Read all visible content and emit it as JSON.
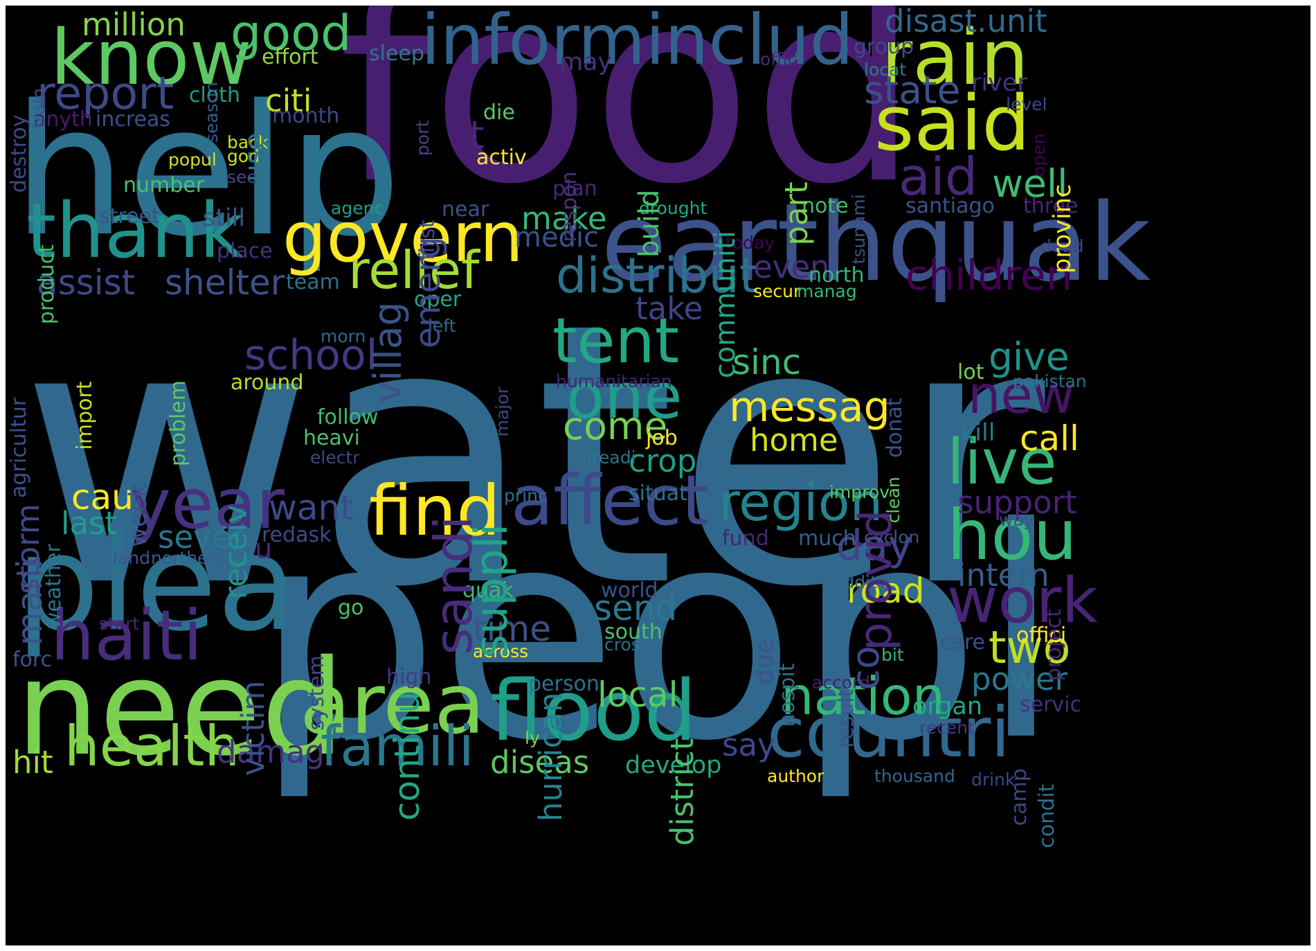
{
  "wordcloud": {
    "background": "#000000",
    "colormap": "viridis",
    "words": [
      {
        "text": "water",
        "color": "#31688e"
      },
      {
        "text": "peopl",
        "color": "#31688e"
      },
      {
        "text": "food",
        "color": "#481f70"
      },
      {
        "text": "help",
        "color": "#2c728e"
      },
      {
        "text": "need",
        "color": "#7ad151"
      },
      {
        "text": "plea",
        "color": "#2c728e"
      },
      {
        "text": "earthquak",
        "color": "#3b528b"
      },
      {
        "text": "informinclud",
        "color": "#33638d"
      },
      {
        "text": "know",
        "color": "#5ec962"
      },
      {
        "text": "rain",
        "color": "#b5de2b"
      },
      {
        "text": "said",
        "color": "#c8e020"
      },
      {
        "text": "thank",
        "color": "#21918c"
      },
      {
        "text": "govern",
        "color": "#fde725"
      },
      {
        "text": "countri",
        "color": "#31688e"
      },
      {
        "text": "flood",
        "color": "#1f9e89"
      },
      {
        "text": "area",
        "color": "#7ad151"
      },
      {
        "text": "haiti",
        "color": "#472d7b"
      },
      {
        "text": "year",
        "color": "#46327e"
      },
      {
        "text": "affect",
        "color": "#3e4989"
      },
      {
        "text": "hou",
        "color": "#35b779"
      },
      {
        "text": "find",
        "color": "#fde725"
      },
      {
        "text": "tent",
        "color": "#22a884"
      },
      {
        "text": "one",
        "color": "#1f9e89"
      },
      {
        "text": "live",
        "color": "#35b779"
      },
      {
        "text": "work",
        "color": "#482475"
      },
      {
        "text": "region",
        "color": "#26828e"
      },
      {
        "text": "famili",
        "color": "#2a788e"
      },
      {
        "text": "health",
        "color": "#86d549"
      },
      {
        "text": "nation",
        "color": "#35b779"
      },
      {
        "text": "report",
        "color": "#3e4989"
      },
      {
        "text": "relief",
        "color": "#a5db36"
      },
      {
        "text": "distribut",
        "color": "#2c728e"
      },
      {
        "text": "good",
        "color": "#4ac16d"
      },
      {
        "text": "aid",
        "color": "#482878"
      },
      {
        "text": "well",
        "color": "#3fbc73"
      },
      {
        "text": "children",
        "color": "#440154"
      },
      {
        "text": "new",
        "color": "#471365"
      },
      {
        "text": "messag",
        "color": "#fde725"
      },
      {
        "text": "two",
        "color": "#bddf26"
      },
      {
        "text": "school",
        "color": "#443983"
      },
      {
        "text": "assist",
        "color": "#3e4989"
      },
      {
        "text": "shelter",
        "color": "#3b528b"
      },
      {
        "text": "state",
        "color": "#3b528b"
      },
      {
        "text": "day",
        "color": "#414487"
      },
      {
        "text": "intern",
        "color": "#355f8d"
      },
      {
        "text": "support",
        "color": "#482475"
      },
      {
        "text": "road",
        "color": "#d2e21b"
      },
      {
        "text": "come",
        "color": "#7ad151"
      },
      {
        "text": "home",
        "color": "#d2e21b"
      },
      {
        "text": "call",
        "color": "#fde725"
      },
      {
        "text": "give",
        "color": "#21918c"
      },
      {
        "text": "power",
        "color": "#2a788e"
      },
      {
        "text": "local",
        "color": "#5ec962"
      },
      {
        "text": "crop",
        "color": "#1f9e89"
      },
      {
        "text": "sinc",
        "color": "#3fbc73"
      },
      {
        "text": "want",
        "color": "#3e4989"
      },
      {
        "text": "take",
        "color": "#414487"
      },
      {
        "text": "make",
        "color": "#35b779"
      },
      {
        "text": "citi",
        "color": "#c8e020"
      },
      {
        "text": "million",
        "color": "#86d549"
      },
      {
        "text": "send",
        "color": "#2a788e"
      },
      {
        "text": "last",
        "color": "#1f9e89"
      },
      {
        "text": "sever",
        "color": "#2a788e"
      },
      {
        "text": "time",
        "color": "#3b528b"
      },
      {
        "text": "cau",
        "color": "#fde725"
      },
      {
        "text": "hit",
        "color": "#a5db36"
      },
      {
        "text": "damag",
        "color": "#46327e"
      },
      {
        "text": "diseas",
        "color": "#5ec962"
      },
      {
        "text": "say",
        "color": "#3e4989"
      },
      {
        "text": "medic",
        "color": "#3b528b"
      },
      {
        "text": "even",
        "color": "#472d7b"
      },
      {
        "text": "oper",
        "color": "#22a884"
      },
      {
        "text": "north",
        "color": "#35b779"
      },
      {
        "text": "note",
        "color": "#3fbc73"
      },
      {
        "text": "team",
        "color": "#2c728e"
      },
      {
        "text": "still",
        "color": "#3b528b"
      },
      {
        "text": "place",
        "color": "#46327e"
      },
      {
        "text": "street",
        "color": "#3b528b"
      },
      {
        "text": "number",
        "color": "#4ac16d"
      },
      {
        "text": "month",
        "color": "#3e4989"
      },
      {
        "text": "increas",
        "color": "#3b528b"
      },
      {
        "text": "anyth",
        "color": "#481a6c"
      },
      {
        "text": "cloth",
        "color": "#1f9e89"
      },
      {
        "text": "effort",
        "color": "#95d840"
      },
      {
        "text": "sleep",
        "color": "#2a788e"
      },
      {
        "text": "may",
        "color": "#46327e"
      },
      {
        "text": "offic",
        "color": "#482878"
      },
      {
        "text": "group",
        "color": "#3e4989"
      },
      {
        "text": "locat",
        "color": "#26828e"
      },
      {
        "text": "level",
        "color": "#3e4989"
      },
      {
        "text": "disast.unit",
        "color": "#31688e"
      },
      {
        "text": "river",
        "color": "#46327e"
      },
      {
        "text": "die",
        "color": "#5ec962"
      },
      {
        "text": "activ",
        "color": "#fde725"
      },
      {
        "text": "back",
        "color": "#d2e21b"
      },
      {
        "text": "god",
        "color": "#d2e21b"
      },
      {
        "text": "popul",
        "color": "#d2e21b"
      },
      {
        "text": "see",
        "color": "#3e4989"
      },
      {
        "text": "plan",
        "color": "#482878"
      },
      {
        "text": "agenc",
        "color": "#1f9e89"
      },
      {
        "text": "near",
        "color": "#3b528b"
      },
      {
        "text": "drought",
        "color": "#22a884"
      },
      {
        "text": "santiago",
        "color": "#3b528b"
      },
      {
        "text": "three",
        "color": "#482878"
      },
      {
        "text": "dead",
        "color": "#414487"
      },
      {
        "text": "today",
        "color": "#440154"
      },
      {
        "text": "secur",
        "color": "#fde725"
      },
      {
        "text": "manag",
        "color": "#35b779"
      },
      {
        "text": "morn",
        "color": "#31688e"
      },
      {
        "text": "left",
        "color": "#31688e"
      },
      {
        "text": "around",
        "color": "#b5de2b"
      },
      {
        "text": "follow",
        "color": "#3fbc73"
      },
      {
        "text": "heavi",
        "color": "#4ac16d"
      },
      {
        "text": "electr",
        "color": "#3e4989"
      },
      {
        "text": "job",
        "color": "#fde725"
      },
      {
        "text": "alreadi",
        "color": "#2a788e"
      },
      {
        "text": "humanitarian",
        "color": "#482475"
      },
      {
        "text": "lot",
        "color": "#7ad151"
      },
      {
        "text": "pakistan",
        "color": "#2c728e"
      },
      {
        "text": "kill",
        "color": "#2a788e"
      },
      {
        "text": "princ",
        "color": "#2c728e"
      },
      {
        "text": "situat",
        "color": "#2c728e"
      },
      {
        "text": "improv",
        "color": "#5ec962"
      },
      {
        "text": "way",
        "color": "#3b528b"
      },
      {
        "text": "redask",
        "color": "#3e4989"
      },
      {
        "text": "fund",
        "color": "#482475"
      },
      {
        "text": "much",
        "color": "#355f8d"
      },
      {
        "text": "cyclon",
        "color": "#3b528b"
      },
      {
        "text": "land",
        "color": "#3b528b"
      },
      {
        "text": "northern",
        "color": "#355f8d"
      },
      {
        "text": "world",
        "color": "#3b528b"
      },
      {
        "text": "quak",
        "color": "#3fbc73"
      },
      {
        "text": "go",
        "color": "#4ac16d"
      },
      {
        "text": "addit",
        "color": "#31688e"
      },
      {
        "text": "south",
        "color": "#4ac16d"
      },
      {
        "text": "cross",
        "color": "#2c728e"
      },
      {
        "text": "across",
        "color": "#fde725"
      },
      {
        "text": "offici",
        "color": "#fde725"
      },
      {
        "text": "care",
        "color": "#3b528b"
      },
      {
        "text": "bit",
        "color": "#35b779"
      },
      {
        "text": "start",
        "color": "#482475"
      },
      {
        "text": "forc",
        "color": "#3b528b"
      },
      {
        "text": "high",
        "color": "#443983"
      },
      {
        "text": "person",
        "color": "#2c728e"
      },
      {
        "text": "accord",
        "color": "#481f70"
      },
      {
        "text": "organ",
        "color": "#22a884"
      },
      {
        "text": "servic",
        "color": "#46327e"
      },
      {
        "text": "recent",
        "color": "#443983"
      },
      {
        "text": "ly",
        "color": "#86d549"
      },
      {
        "text": "develop",
        "color": "#22a884"
      },
      {
        "text": "author",
        "color": "#fde725"
      },
      {
        "text": "thousand",
        "color": "#31688e"
      },
      {
        "text": "drink",
        "color": "#3e4989"
      },
      {
        "text": "villag",
        "color": "#3b528b"
      },
      {
        "text": "emerg",
        "color": "#3e4989"
      },
      {
        "text": "sandi",
        "color": "#472d7b"
      },
      {
        "text": "suppli",
        "color": "#20a486"
      },
      {
        "text": "provid",
        "color": "#482878"
      },
      {
        "text": "use",
        "color": "#2c728e"
      },
      {
        "text": "communiti",
        "color": "#22a884"
      },
      {
        "text": "part",
        "color": "#7ad151"
      },
      {
        "text": "build",
        "color": "#4ac16d"
      },
      {
        "text": "respon",
        "color": "#46327e"
      },
      {
        "text": "first",
        "color": "#3e4989"
      },
      {
        "text": "port",
        "color": "#414487"
      },
      {
        "text": "tsunami",
        "color": "#3b528b"
      },
      {
        "text": "provinc",
        "color": "#fde725"
      },
      {
        "text": "open",
        "color": "#440154"
      },
      {
        "text": "mani",
        "color": "#3b528b"
      },
      {
        "text": "storm",
        "color": "#3e4989"
      },
      {
        "text": "weather",
        "color": "#2a788e"
      },
      {
        "text": "week",
        "color": "#3b528b"
      },
      {
        "text": "agricultur",
        "color": "#3b528b"
      },
      {
        "text": "import",
        "color": "#c8e020"
      },
      {
        "text": "problem",
        "color": "#5ec962"
      },
      {
        "text": "product",
        "color": "#4ac16d"
      },
      {
        "text": "destroy",
        "color": "#3e4989"
      },
      {
        "text": "train",
        "color": "#3b528b"
      },
      {
        "text": "season",
        "color": "#355f8d"
      },
      {
        "text": "receiv",
        "color": "#21918c"
      },
      {
        "text": "victim",
        "color": "#3b528b"
      },
      {
        "text": "continu",
        "color": "#22a884"
      },
      {
        "text": "hurrican",
        "color": "#26828e"
      },
      {
        "text": "district",
        "color": "#4ac16d"
      },
      {
        "text": "system",
        "color": "#3e4989"
      },
      {
        "text": "due",
        "color": "#3b528b"
      },
      {
        "text": "hospit",
        "color": "#2c728e"
      },
      {
        "text": "result",
        "color": "#3b528b"
      },
      {
        "text": "donat",
        "color": "#3b528b"
      },
      {
        "text": "major",
        "color": "#3e4989"
      },
      {
        "text": "clean",
        "color": "#5ec962"
      },
      {
        "text": "project",
        "color": "#482878"
      },
      {
        "text": "camp",
        "color": "#3e4989"
      },
      {
        "text": "condit",
        "color": "#2c728e"
      },
      {
        "text": "u",
        "color": "#482878"
      },
      {
        "text": "t",
        "color": "#482878"
      },
      {
        "text": "co",
        "color": "#3e4989"
      }
    ]
  }
}
